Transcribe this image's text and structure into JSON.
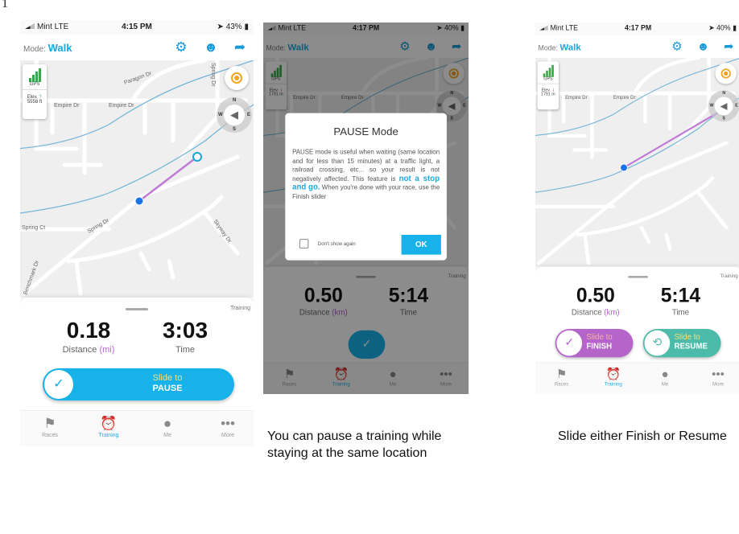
{
  "figure_number": "1",
  "phones": [
    {
      "status": {
        "carrier": "Mint  LTE",
        "time": "4:15 PM",
        "battery": "43%"
      },
      "header": {
        "mode_label": "Mode:",
        "mode_value": "Walk"
      },
      "map": {
        "gps": "GPS",
        "elev_label": "Elev.",
        "elev_value": "5558 ft",
        "elev_direction": "up",
        "compass": {
          "n": "N",
          "s": "S",
          "e": "E",
          "w": "W"
        },
        "streets": [
          "Paragon Dr",
          "Empire Dr",
          "Empire Dr",
          "Spring Dr",
          "Spring Ct",
          "Skyway Dr",
          "Benchmark Dr",
          "Spring Dr"
        ]
      },
      "sheet": {
        "tag": "Training",
        "distance": "0.18",
        "distance_label": "Distance",
        "distance_unit": "(mi)",
        "time": "3:03",
        "time_label": "Time",
        "slider": {
          "line1": "Slide to",
          "line2": "PAUSE"
        }
      }
    },
    {
      "status": {
        "carrier": "Mint  LTE",
        "time": "4:17 PM",
        "battery": "40%"
      },
      "header": {
        "mode_label": "Mode:",
        "mode_value": "Walk"
      },
      "map": {
        "gps": "GPS",
        "elev_label": "Elev.",
        "elev_value": "1791 m",
        "elev_direction": "down",
        "compass": {
          "n": "N",
          "s": "S",
          "e": "E",
          "w": "W"
        }
      },
      "sheet": {
        "tag": "Training",
        "distance": "0.50",
        "distance_label": "Distance",
        "distance_unit": "(km)",
        "time": "5:14",
        "time_label": "Time"
      },
      "dialog": {
        "title": "PAUSE Mode",
        "body_before": "PAUSE mode is useful when waiting (same location and for less than 15 minutes) at a traffic light, a railroad crossing, etc... so your result is not negatively affected. This feature is ",
        "body_highlight": "not a stop and go.",
        "body_after": " When you're done with your race, use the Finish slider",
        "checkbox_label": "Don't show again",
        "checkbox_checked": false,
        "ok": "OK"
      }
    },
    {
      "status": {
        "carrier": "Mint  LTE",
        "time": "4:17 PM",
        "battery": "40%"
      },
      "header": {
        "mode_label": "Mode:",
        "mode_value": "Walk"
      },
      "map": {
        "gps": "GPS",
        "elev_label": "Elev.",
        "elev_value": "1791 m",
        "elev_direction": "down",
        "compass": {
          "n": "N",
          "s": "S",
          "e": "E",
          "w": "W"
        }
      },
      "sheet": {
        "tag": "Training",
        "distance": "0.50",
        "distance_label": "Distance",
        "distance_unit": "(km)",
        "time": "5:14",
        "time_label": "Time",
        "finish_slider": {
          "line1": "Slide to",
          "line2": "FINISH"
        },
        "resume_slider": {
          "line1": "Slide to",
          "line2": "RESUME"
        }
      }
    }
  ],
  "tabs": [
    {
      "label": "Races",
      "icon": "flag-icon"
    },
    {
      "label": "Training",
      "icon": "alarm-clock-icon",
      "active": true
    },
    {
      "label": "Me",
      "icon": "user-icon"
    },
    {
      "label": "More",
      "icon": "more-icon"
    }
  ],
  "captions": {
    "pause": "You can pause a training while staying at the same location",
    "finish_resume": "Slide either Finish or Resume"
  },
  "colors": {
    "accent": "#17a9e1",
    "route": "#c07ad6",
    "finish": "#b565c9",
    "resume": "#4dbba9",
    "gps": "#3aa84a",
    "locate": "#f4a41f"
  }
}
